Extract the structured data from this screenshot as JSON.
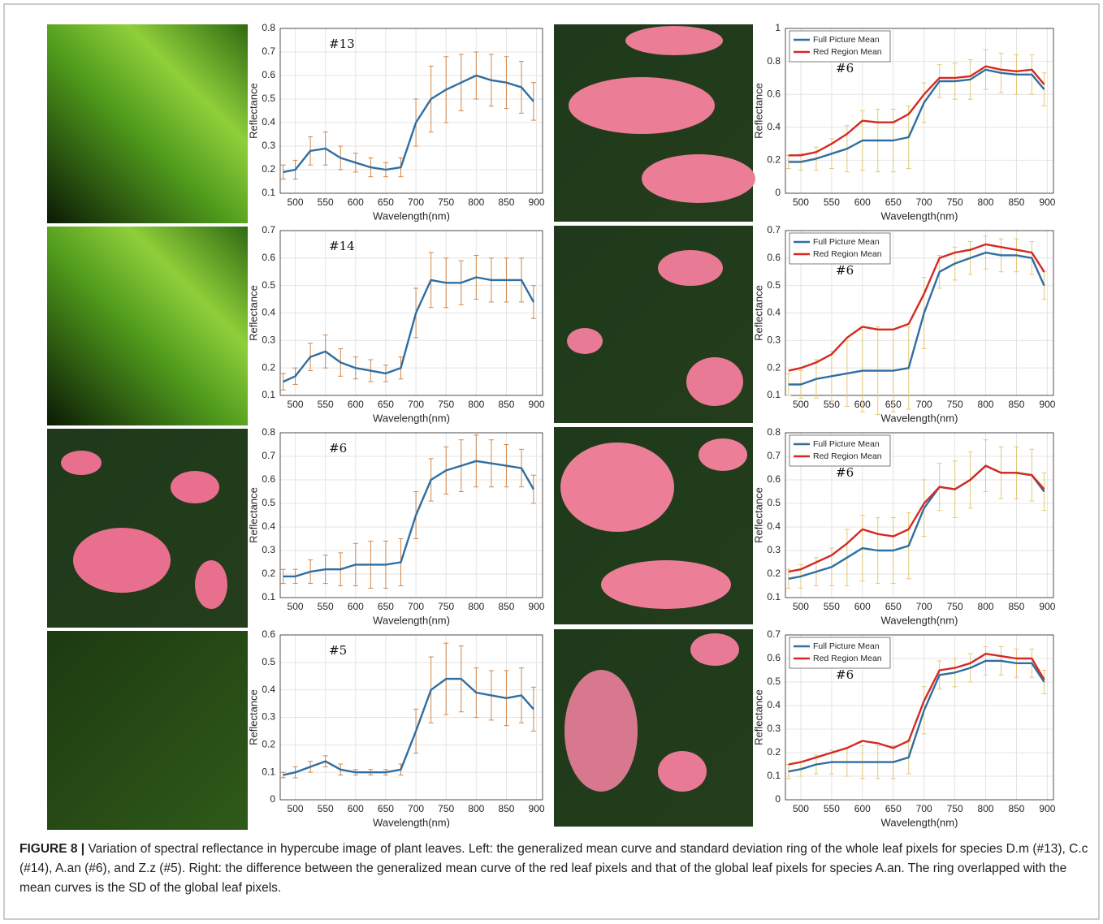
{
  "chart_data": [
    {
      "type": "line",
      "annotation": "#13",
      "xlabel": "Wavelength(nm)",
      "ylabel": "Reflectance",
      "x": [
        480,
        500,
        525,
        550,
        575,
        600,
        625,
        650,
        675,
        700,
        725,
        750,
        775,
        800,
        825,
        850,
        875,
        895
      ],
      "xlim": [
        475,
        910
      ],
      "xticks": [
        500,
        550,
        600,
        650,
        700,
        750,
        800,
        850,
        900
      ],
      "ylim": [
        0.1,
        0.8
      ],
      "yticks": [
        0.1,
        0.2,
        0.3,
        0.4,
        0.5,
        0.6,
        0.7,
        0.8
      ],
      "grid": true,
      "series": [
        {
          "color": "#2f6ea2",
          "error_color": "#d2874a",
          "values": [
            0.19,
            0.2,
            0.28,
            0.29,
            0.25,
            0.23,
            0.21,
            0.2,
            0.21,
            0.4,
            0.5,
            0.54,
            0.57,
            0.6,
            0.58,
            0.57,
            0.55,
            0.49
          ],
          "errors": [
            0.03,
            0.04,
            0.06,
            0.07,
            0.05,
            0.04,
            0.04,
            0.03,
            0.04,
            0.1,
            0.14,
            0.14,
            0.12,
            0.1,
            0.11,
            0.11,
            0.11,
            0.08
          ]
        }
      ]
    },
    {
      "type": "line",
      "annotation": "#6",
      "xlabel": "Wavelength(nm)",
      "ylabel": "Reflectance",
      "x": [
        480,
        500,
        525,
        550,
        575,
        600,
        625,
        650,
        675,
        700,
        725,
        750,
        775,
        800,
        825,
        850,
        875,
        895
      ],
      "xlim": [
        475,
        910
      ],
      "xticks": [
        500,
        550,
        600,
        650,
        700,
        750,
        800,
        850,
        900
      ],
      "ylim": [
        0,
        1
      ],
      "yticks": [
        0,
        0.2,
        0.4,
        0.6,
        0.8,
        1
      ],
      "grid": true,
      "legend": "upper left",
      "series": [
        {
          "name": "Full Picture Mean",
          "color": "#2f6ea2",
          "error_color": "#e3c97a",
          "values": [
            0.19,
            0.19,
            0.21,
            0.24,
            0.27,
            0.32,
            0.32,
            0.32,
            0.34,
            0.55,
            0.68,
            0.68,
            0.69,
            0.75,
            0.73,
            0.72,
            0.72,
            0.63
          ],
          "errors": [
            0.04,
            0.05,
            0.07,
            0.09,
            0.14,
            0.18,
            0.19,
            0.19,
            0.19,
            0.12,
            0.1,
            0.11,
            0.12,
            0.12,
            0.12,
            0.12,
            0.12,
            0.1
          ]
        },
        {
          "name": "Red Region Mean",
          "color": "#d42a22",
          "values": [
            0.23,
            0.23,
            0.25,
            0.3,
            0.36,
            0.44,
            0.43,
            0.43,
            0.48,
            0.6,
            0.7,
            0.7,
            0.71,
            0.77,
            0.75,
            0.74,
            0.75,
            0.66
          ]
        }
      ]
    },
    {
      "type": "line",
      "annotation": "#14",
      "xlabel": "Wavelength(nm)",
      "ylabel": "Reflectance",
      "x": [
        480,
        500,
        525,
        550,
        575,
        600,
        625,
        650,
        675,
        700,
        725,
        750,
        775,
        800,
        825,
        850,
        875,
        895
      ],
      "xlim": [
        475,
        910
      ],
      "xticks": [
        500,
        550,
        600,
        650,
        700,
        750,
        800,
        850,
        900
      ],
      "ylim": [
        0.1,
        0.7
      ],
      "yticks": [
        0.1,
        0.2,
        0.3,
        0.4,
        0.5,
        0.6,
        0.7
      ],
      "grid": true,
      "series": [
        {
          "color": "#2f6ea2",
          "error_color": "#d2874a",
          "values": [
            0.15,
            0.17,
            0.24,
            0.26,
            0.22,
            0.2,
            0.19,
            0.18,
            0.2,
            0.4,
            0.52,
            0.51,
            0.51,
            0.53,
            0.52,
            0.52,
            0.52,
            0.44
          ],
          "errors": [
            0.03,
            0.03,
            0.05,
            0.06,
            0.05,
            0.04,
            0.04,
            0.03,
            0.04,
            0.09,
            0.1,
            0.09,
            0.08,
            0.08,
            0.08,
            0.08,
            0.08,
            0.06
          ]
        }
      ]
    },
    {
      "type": "line",
      "annotation": "#6",
      "xlabel": "Wavelength(nm)",
      "ylabel": "Reflectance",
      "x": [
        480,
        500,
        525,
        550,
        575,
        600,
        625,
        650,
        675,
        700,
        725,
        750,
        775,
        800,
        825,
        850,
        875,
        895
      ],
      "xlim": [
        475,
        910
      ],
      "xticks": [
        500,
        550,
        600,
        650,
        700,
        750,
        800,
        850,
        900
      ],
      "ylim": [
        0.1,
        0.7
      ],
      "yticks": [
        0.1,
        0.2,
        0.3,
        0.4,
        0.5,
        0.6,
        0.7
      ],
      "grid": true,
      "legend": "upper left",
      "series": [
        {
          "name": "Full Picture Mean",
          "color": "#2f6ea2",
          "error_color": "#e3c97a",
          "values": [
            0.14,
            0.14,
            0.16,
            0.17,
            0.18,
            0.19,
            0.19,
            0.19,
            0.2,
            0.4,
            0.55,
            0.58,
            0.6,
            0.62,
            0.61,
            0.61,
            0.6,
            0.5
          ],
          "errors": [
            0.04,
            0.05,
            0.07,
            0.09,
            0.12,
            0.15,
            0.16,
            0.15,
            0.15,
            0.13,
            0.06,
            0.06,
            0.06,
            0.06,
            0.06,
            0.06,
            0.06,
            0.05
          ]
        },
        {
          "name": "Red Region Mean",
          "color": "#d42a22",
          "values": [
            0.19,
            0.2,
            0.22,
            0.25,
            0.31,
            0.35,
            0.34,
            0.34,
            0.36,
            0.47,
            0.6,
            0.62,
            0.63,
            0.65,
            0.64,
            0.63,
            0.62,
            0.55
          ]
        }
      ]
    },
    {
      "type": "line",
      "annotation": "#6",
      "xlabel": "Wavelength(nm)",
      "ylabel": "Reflectance",
      "x": [
        480,
        500,
        525,
        550,
        575,
        600,
        625,
        650,
        675,
        700,
        725,
        750,
        775,
        800,
        825,
        850,
        875,
        895
      ],
      "xlim": [
        475,
        910
      ],
      "xticks": [
        500,
        550,
        600,
        650,
        700,
        750,
        800,
        850,
        900
      ],
      "ylim": [
        0.1,
        0.8
      ],
      "yticks": [
        0.1,
        0.2,
        0.3,
        0.4,
        0.5,
        0.6,
        0.7,
        0.8
      ],
      "grid": true,
      "series": [
        {
          "color": "#2f6ea2",
          "error_color": "#d2874a",
          "values": [
            0.19,
            0.19,
            0.21,
            0.22,
            0.22,
            0.24,
            0.24,
            0.24,
            0.25,
            0.45,
            0.6,
            0.64,
            0.66,
            0.68,
            0.67,
            0.66,
            0.65,
            0.56
          ],
          "errors": [
            0.03,
            0.03,
            0.05,
            0.06,
            0.07,
            0.09,
            0.1,
            0.1,
            0.1,
            0.1,
            0.09,
            0.1,
            0.11,
            0.11,
            0.1,
            0.09,
            0.08,
            0.06
          ]
        }
      ]
    },
    {
      "type": "line",
      "annotation": "#6",
      "xlabel": "Wavelength(nm)",
      "ylabel": "Reflectance",
      "x": [
        480,
        500,
        525,
        550,
        575,
        600,
        625,
        650,
        675,
        700,
        725,
        750,
        775,
        800,
        825,
        850,
        875,
        895
      ],
      "xlim": [
        475,
        910
      ],
      "xticks": [
        500,
        550,
        600,
        650,
        700,
        750,
        800,
        850,
        900
      ],
      "ylim": [
        0.1,
        0.8
      ],
      "yticks": [
        0.1,
        0.2,
        0.3,
        0.4,
        0.5,
        0.6,
        0.7,
        0.8
      ],
      "grid": true,
      "legend": "upper left",
      "series": [
        {
          "name": "Full Picture Mean",
          "color": "#2f6ea2",
          "error_color": "#e3c97a",
          "values": [
            0.18,
            0.19,
            0.21,
            0.23,
            0.27,
            0.31,
            0.3,
            0.3,
            0.32,
            0.48,
            0.57,
            0.56,
            0.6,
            0.66,
            0.63,
            0.63,
            0.62,
            0.55
          ],
          "errors": [
            0.04,
            0.05,
            0.06,
            0.08,
            0.12,
            0.14,
            0.14,
            0.14,
            0.14,
            0.12,
            0.1,
            0.12,
            0.12,
            0.11,
            0.11,
            0.11,
            0.11,
            0.08
          ]
        },
        {
          "name": "Red Region Mean",
          "color": "#d42a22",
          "values": [
            0.21,
            0.22,
            0.25,
            0.28,
            0.33,
            0.39,
            0.37,
            0.36,
            0.39,
            0.5,
            0.57,
            0.56,
            0.6,
            0.66,
            0.63,
            0.63,
            0.62,
            0.56
          ]
        }
      ]
    },
    {
      "type": "line",
      "annotation": "#5",
      "xlabel": "Wavelength(nm)",
      "ylabel": "Reflectance",
      "x": [
        480,
        500,
        525,
        550,
        575,
        600,
        625,
        650,
        675,
        700,
        725,
        750,
        775,
        800,
        825,
        850,
        875,
        895
      ],
      "xlim": [
        475,
        910
      ],
      "xticks": [
        500,
        550,
        600,
        650,
        700,
        750,
        800,
        850,
        900
      ],
      "ylim": [
        0,
        0.6
      ],
      "yticks": [
        0,
        0.1,
        0.2,
        0.3,
        0.4,
        0.5,
        0.6
      ],
      "grid": true,
      "series": [
        {
          "color": "#2f6ea2",
          "error_color": "#d2874a",
          "values": [
            0.09,
            0.1,
            0.12,
            0.14,
            0.11,
            0.1,
            0.1,
            0.1,
            0.11,
            0.25,
            0.4,
            0.44,
            0.44,
            0.39,
            0.38,
            0.37,
            0.38,
            0.33
          ],
          "errors": [
            0.01,
            0.02,
            0.02,
            0.02,
            0.02,
            0.01,
            0.01,
            0.01,
            0.02,
            0.08,
            0.12,
            0.13,
            0.12,
            0.09,
            0.09,
            0.1,
            0.1,
            0.08
          ]
        }
      ]
    },
    {
      "type": "line",
      "annotation": "#6",
      "xlabel": "Wavelength(nm)",
      "ylabel": "Reflectance",
      "x": [
        480,
        500,
        525,
        550,
        575,
        600,
        625,
        650,
        675,
        700,
        725,
        750,
        775,
        800,
        825,
        850,
        875,
        895
      ],
      "xlim": [
        475,
        910
      ],
      "xticks": [
        500,
        550,
        600,
        650,
        700,
        750,
        800,
        850,
        900
      ],
      "ylim": [
        0,
        0.7
      ],
      "yticks": [
        0,
        0.1,
        0.2,
        0.3,
        0.4,
        0.5,
        0.6,
        0.7
      ],
      "grid": true,
      "legend": "upper left",
      "series": [
        {
          "name": "Full Picture Mean",
          "color": "#2f6ea2",
          "error_color": "#e3c97a",
          "values": [
            0.12,
            0.13,
            0.15,
            0.16,
            0.16,
            0.16,
            0.16,
            0.16,
            0.18,
            0.38,
            0.53,
            0.54,
            0.56,
            0.59,
            0.59,
            0.58,
            0.58,
            0.5
          ],
          "errors": [
            0.03,
            0.03,
            0.04,
            0.05,
            0.06,
            0.07,
            0.07,
            0.07,
            0.07,
            0.1,
            0.06,
            0.06,
            0.06,
            0.06,
            0.06,
            0.06,
            0.06,
            0.05
          ]
        },
        {
          "name": "Red Region Mean",
          "color": "#d42a22",
          "values": [
            0.15,
            0.16,
            0.18,
            0.2,
            0.22,
            0.25,
            0.24,
            0.22,
            0.25,
            0.42,
            0.55,
            0.56,
            0.58,
            0.62,
            0.61,
            0.6,
            0.6,
            0.51
          ]
        }
      ]
    }
  ],
  "caption": {
    "label": "FIGURE 8 |",
    "text": "Variation of spectral reflectance in hypercube image of plant leaves. Left: the generalized mean curve and standard deviation ring of the whole leaf pixels for species D.m (#13), C.c (#14), A.an (#6), and Z.z (#5). Right: the difference between the generalized mean curve of the red leaf pixels and that of the global leaf pixels for species A.an. The ring overlapped with the mean curves is the SD of the global leaf pixels."
  }
}
